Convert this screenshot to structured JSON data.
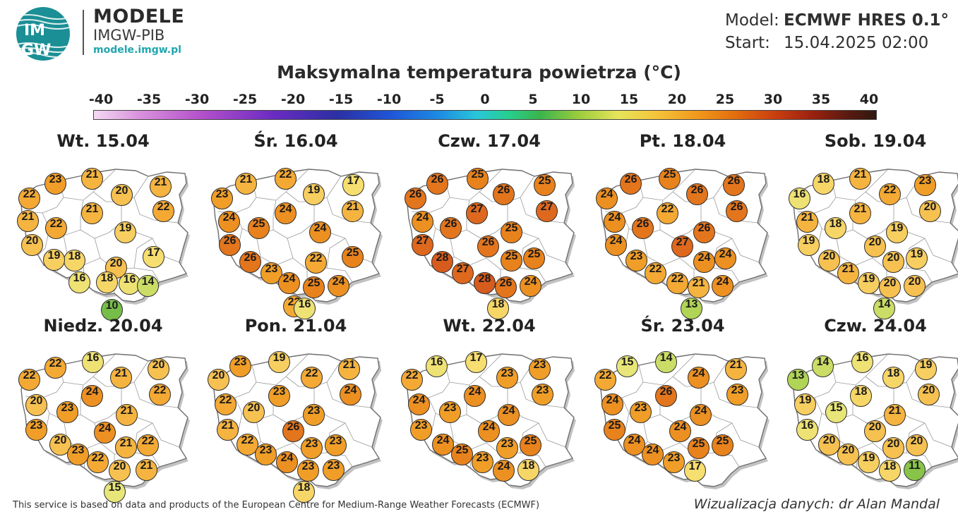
{
  "brand": {
    "logo_text_top": "IM",
    "logo_text_bottom": "GW",
    "title": "MODELE",
    "subtitle": "IMGW-PIB",
    "link": "modele.imgw.pl"
  },
  "meta": {
    "model_label": "Model:",
    "model_value": "ECMWF HRES 0.1°",
    "start_label": "Start:",
    "start_value": "15.04.2025 02:00"
  },
  "title": "Maksymalna temperatura powietrza (°C)",
  "scale": {
    "ticks": [
      "-40",
      "-35",
      "-30",
      "-25",
      "-20",
      "-15",
      "-10",
      "-5",
      "0",
      "5",
      "10",
      "15",
      "20",
      "25",
      "30",
      "35",
      "40"
    ]
  },
  "panels": [
    {
      "title": "Wt. 15.04",
      "values": [
        23,
        21,
        22,
        21,
        21,
        20,
        22,
        22,
        21,
        20,
        19,
        20,
        18,
        16,
        17,
        19,
        18,
        16,
        14,
        10
      ]
    },
    {
      "title": "Śr. 16.04",
      "values": [
        21,
        22,
        23,
        19,
        17,
        21,
        24,
        25,
        24,
        24,
        26,
        26,
        25,
        23,
        22,
        24,
        25,
        24,
        22,
        16
      ]
    },
    {
      "title": "Czw. 17.04",
      "values": [
        26,
        25,
        26,
        26,
        25,
        27,
        24,
        26,
        27,
        25,
        27,
        28,
        26,
        25,
        25,
        27,
        28,
        26,
        24,
        18
      ]
    },
    {
      "title": "Pt. 18.04",
      "values": [
        26,
        25,
        24,
        26,
        26,
        26,
        24,
        26,
        22,
        26,
        24,
        27,
        23,
        24,
        24,
        22,
        22,
        21,
        24,
        13
      ]
    },
    {
      "title": "Sob. 19.04",
      "values": [
        18,
        21,
        16,
        22,
        23,
        20,
        21,
        18,
        21,
        19,
        19,
        20,
        20,
        20,
        19,
        21,
        19,
        20,
        20,
        14
      ]
    },
    {
      "title": "Niedz. 20.04",
      "values": [
        22,
        16,
        22,
        21,
        20,
        22,
        20,
        23,
        24,
        21,
        23,
        24,
        20,
        21,
        22,
        23,
        22,
        20,
        21,
        15
      ]
    },
    {
      "title": "Pon. 21.04",
      "values": [
        23,
        19,
        20,
        22,
        21,
        24,
        22,
        20,
        23,
        23,
        21,
        26,
        22,
        23,
        23,
        23,
        24,
        23,
        23,
        18
      ]
    },
    {
      "title": "Wt. 22.04",
      "values": [
        16,
        17,
        22,
        23,
        23,
        23,
        24,
        23,
        24,
        24,
        23,
        24,
        24,
        23,
        25,
        25,
        23,
        24,
        18
      ]
    },
    {
      "title": "Śr. 23.04",
      "values": [
        15,
        14,
        22,
        24,
        21,
        23,
        24,
        23,
        26,
        24,
        25,
        24,
        24,
        25,
        25,
        24,
        23,
        17
      ]
    },
    {
      "title": "Czw. 24.04",
      "values": [
        14,
        16,
        13,
        18,
        19,
        20,
        19,
        15,
        18,
        21,
        16,
        20,
        20,
        20,
        20,
        20,
        19,
        18,
        11
      ]
    }
  ],
  "footer": {
    "left": "This service is based on data and products of the European Centre for Medium-Range Weather Forecasts (ECMWF)",
    "right": "Wizualizacja danych: dr Alan Mandal"
  },
  "colors": {
    "scale_min": "#f4d9f3",
    "cool": "#27cf8f",
    "green": "#3ab54c",
    "yellow": "#e6e55a",
    "warm": "#f19a1c",
    "hot": "#c93f10"
  }
}
